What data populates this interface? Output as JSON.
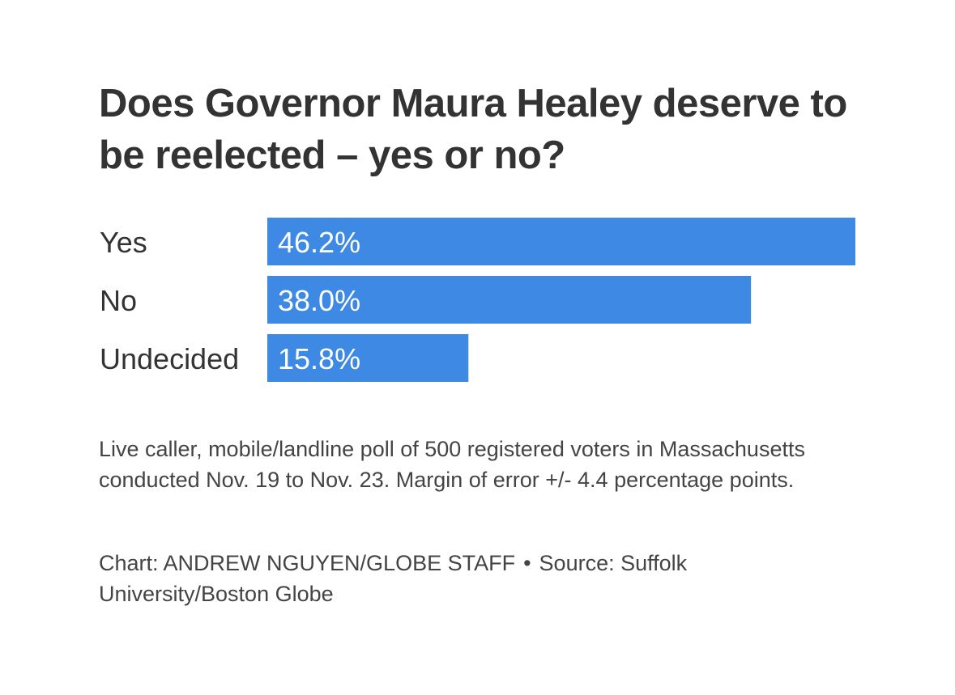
{
  "chart_data": {
    "type": "bar",
    "orientation": "horizontal",
    "title": "Does Governor Maura Healey deserve to be reelected – yes or no?",
    "categories": [
      "Yes",
      "No",
      "Undecided"
    ],
    "values": [
      46.2,
      38.0,
      15.8
    ],
    "value_labels": [
      "46.2%",
      "38.0%",
      "15.8%"
    ],
    "xlim": [
      0,
      46.2
    ],
    "grid": false,
    "bar_color": "#3d89e4"
  },
  "footer": {
    "note": "Live caller, mobile/landline poll of 500 registered voters in Massachusetts conducted Nov. 19 to Nov. 23. Margin of error +/- 4.4 percentage points.",
    "credit_chart": "Chart: ANDREW NGUYEN/GLOBE STAFF",
    "separator": "•",
    "credit_source": "Source: Suffolk University/Boston Globe"
  }
}
